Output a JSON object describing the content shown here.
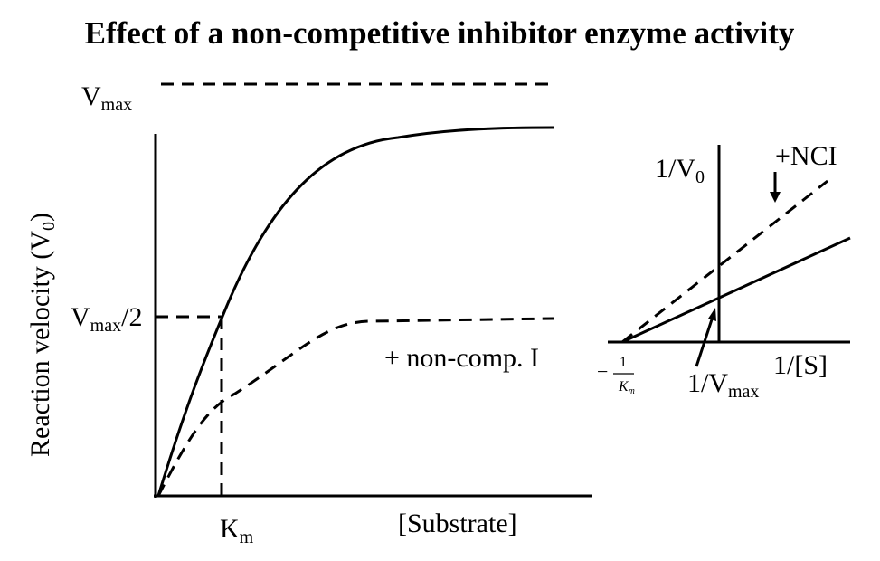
{
  "title": "Effect of a non-competitive inhibitor enzyme activity",
  "michaelis_menten": {
    "vmax": {
      "main": "V",
      "sub": "max"
    },
    "half_vmax": {
      "main": "V",
      "sub": "max",
      "suffix": "/2"
    },
    "y_axis": {
      "main": "Reaction velocity (V",
      "sub": "0",
      "suffix": ")"
    },
    "km": {
      "main": "K",
      "sub": "m"
    },
    "x_axis": "[Substrate]",
    "inhibited": "+ non-comp. I"
  },
  "lineweaver_burk": {
    "y_axis": {
      "main": "1/V",
      "sub": "0"
    },
    "inhibited": "+NCI",
    "x_axis": "1/[S]",
    "y_intercept": {
      "main": "1/V",
      "sub": "max"
    },
    "x_intercept": {
      "sign": "−",
      "numerator": "1",
      "denominator_main": "K",
      "denominator_sub": "m"
    }
  }
}
